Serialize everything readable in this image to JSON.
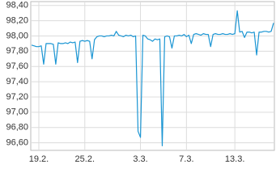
{
  "chart_data": {
    "type": "line",
    "categories": [
      null,
      null,
      null,
      "19.2.",
      null,
      null,
      null,
      null,
      null,
      null,
      null,
      null,
      null,
      null,
      null,
      null,
      null,
      null,
      null,
      null,
      null,
      null,
      "25.2.",
      null,
      null,
      null,
      null,
      null,
      null,
      null,
      null,
      null,
      null,
      null,
      null,
      null,
      null,
      null,
      null,
      null,
      null,
      null,
      null,
      null,
      null,
      "3.3.",
      null,
      null,
      null,
      null,
      null,
      null,
      null,
      null,
      null,
      null,
      null,
      null,
      null,
      null,
      null,
      null,
      null,
      null,
      "7.3.",
      null,
      null,
      null,
      null,
      null,
      null,
      null,
      null,
      null,
      null,
      null,
      null,
      null,
      null,
      null,
      null,
      null,
      null,
      null,
      "13.3.",
      null,
      null,
      null,
      null,
      null,
      null,
      null,
      null,
      null,
      null,
      null,
      null,
      null,
      null,
      null,
      null
    ],
    "values": [
      97.88,
      97.87,
      97.86,
      97.86,
      97.87,
      97.63,
      97.9,
      97.9,
      97.9,
      97.89,
      97.63,
      97.91,
      97.9,
      97.9,
      97.91,
      97.9,
      97.92,
      97.91,
      97.92,
      97.65,
      97.93,
      97.94,
      97.93,
      97.94,
      97.93,
      97.7,
      97.95,
      97.99,
      98.0,
      98.0,
      97.99,
      98.0,
      98.0,
      98.01,
      98.0,
      98.06,
      98.01,
      98.0,
      97.99,
      98.01,
      98.0,
      98.01,
      97.99,
      98.0,
      96.75,
      96.67,
      98.01,
      98.0,
      97.96,
      97.95,
      97.93,
      97.96,
      97.95,
      97.96,
      96.56,
      97.99,
      98.0,
      97.99,
      97.84,
      98.0,
      98.0,
      98.01,
      98.0,
      98.02,
      97.99,
      98.01,
      97.9,
      98.02,
      98.03,
      98.02,
      98.01,
      98.03,
      98.02,
      98.02,
      97.86,
      98.02,
      98.03,
      98.02,
      98.02,
      98.03,
      98.02,
      98.02,
      98.03,
      98.02,
      98.03,
      98.33,
      98.05,
      98.06,
      97.98,
      98.05,
      98.05,
      98.04,
      98.05,
      97.75,
      98.05,
      98.05,
      98.06,
      98.06,
      98.05,
      98.06,
      98.17
    ],
    "color": "#1a95d3",
    "ylim": [
      96.5,
      98.45
    ],
    "yticks": [
      {
        "value": 96.6,
        "label": "96,60"
      },
      {
        "value": 96.8,
        "label": "96,80"
      },
      {
        "value": 97.0,
        "label": "97,00"
      },
      {
        "value": 97.2,
        "label": "97,20"
      },
      {
        "value": 97.4,
        "label": "97,40"
      },
      {
        "value": 97.6,
        "label": "97,60"
      },
      {
        "value": 97.8,
        "label": "97,80"
      },
      {
        "value": 98.0,
        "label": "98,00"
      },
      {
        "value": 98.2,
        "label": "98,20"
      },
      {
        "value": 98.4,
        "label": "98,40"
      }
    ],
    "grid": true
  }
}
